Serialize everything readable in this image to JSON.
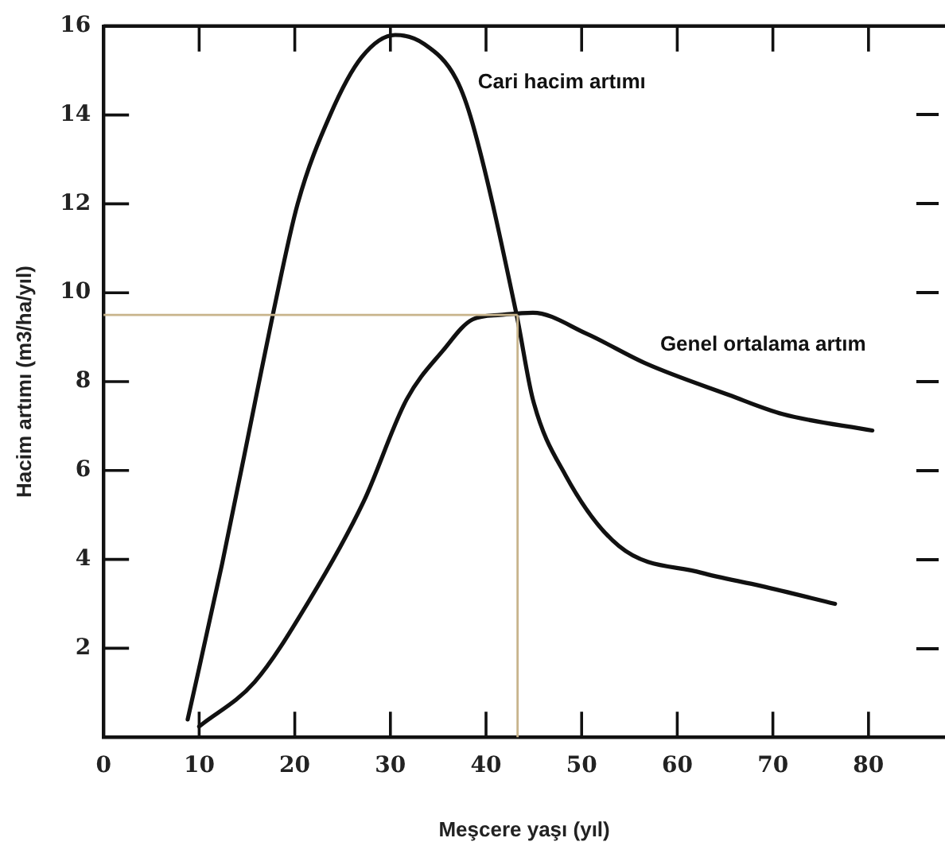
{
  "chart_data": {
    "type": "line",
    "xlabel": "Meşcere yaşı (yıl)",
    "ylabel": "Hacim artımı (m3/ha/yıl)",
    "xlim": [
      0,
      88
    ],
    "xticks": [
      0,
      10,
      20,
      30,
      40,
      50,
      60,
      70,
      80
    ],
    "ylim": [
      0,
      16
    ],
    "yticks": [
      2,
      4,
      6,
      8,
      10,
      12,
      14,
      16
    ],
    "grid": false,
    "marker": "none",
    "line_style": "solid",
    "series": [
      {
        "name": "Cari hacim artımı",
        "color": "#111111",
        "x": [
          8.8,
          12.4,
          15.9,
          17.7,
          20.3,
          23.7,
          27,
          30.5,
          33.5,
          36.9,
          38.6,
          43.2,
          44.9,
          48.3,
          53.9,
          62.5,
          68.8,
          76.5
        ],
        "values": [
          0.4,
          3.9,
          7.6,
          9.5,
          12,
          14,
          15.3,
          15.8,
          15.6,
          14.8,
          13.8,
          9.5,
          7.6,
          5.9,
          4.3,
          3.7,
          3.4,
          3.0
        ]
      },
      {
        "name": "Genel ortalama artım",
        "color": "#111111",
        "x": [
          10,
          15.8,
          21.5,
          27.2,
          31.7,
          35.5,
          38.6,
          41.5,
          44.9,
          50.5,
          56.8,
          65.4,
          71,
          80.4
        ],
        "values": [
          0.24,
          1.24,
          3.07,
          5.3,
          7.6,
          8.7,
          9.4,
          9.5,
          9.55,
          9.08,
          8.4,
          7.7,
          7.27,
          6.9
        ]
      }
    ],
    "ref_lines": [
      {
        "axis": "x",
        "value": 43.3,
        "color": "#c8b48c"
      },
      {
        "axis": "y",
        "value": 9.5,
        "color": "#c8b48c"
      }
    ]
  }
}
